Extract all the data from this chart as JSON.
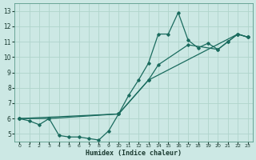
{
  "xlabel": "Humidex (Indice chaleur)",
  "bg_color": "#cce8e4",
  "grid_color": "#b0d4cc",
  "line_color": "#1a6b5e",
  "xlim": [
    -0.5,
    23.5
  ],
  "ylim": [
    4.5,
    13.5
  ],
  "xticks": [
    0,
    1,
    2,
    3,
    4,
    5,
    6,
    7,
    8,
    9,
    10,
    11,
    12,
    13,
    14,
    15,
    16,
    17,
    18,
    19,
    20,
    21,
    22,
    23
  ],
  "yticks": [
    5,
    6,
    7,
    8,
    9,
    10,
    11,
    12,
    13
  ],
  "series1_x": [
    0,
    1,
    2,
    3,
    4,
    5,
    6,
    7,
    8,
    9,
    10,
    11,
    12,
    13,
    14,
    15,
    16,
    17,
    18,
    19,
    20,
    21,
    22,
    23
  ],
  "series1_y": [
    6.0,
    5.85,
    5.6,
    6.0,
    4.9,
    4.8,
    4.8,
    4.7,
    4.6,
    5.2,
    6.3,
    7.5,
    8.5,
    9.6,
    11.5,
    11.5,
    12.9,
    11.1,
    10.6,
    10.9,
    10.5,
    11.0,
    11.5,
    11.3
  ],
  "series2_x": [
    0,
    3,
    10,
    13,
    14,
    17,
    20,
    21,
    22,
    23
  ],
  "series2_y": [
    6.0,
    6.0,
    6.3,
    8.5,
    9.5,
    10.8,
    10.5,
    11.0,
    11.5,
    11.3
  ],
  "series3_x": [
    0,
    10,
    13,
    22,
    23
  ],
  "series3_y": [
    6.0,
    6.3,
    8.5,
    11.5,
    11.3
  ]
}
